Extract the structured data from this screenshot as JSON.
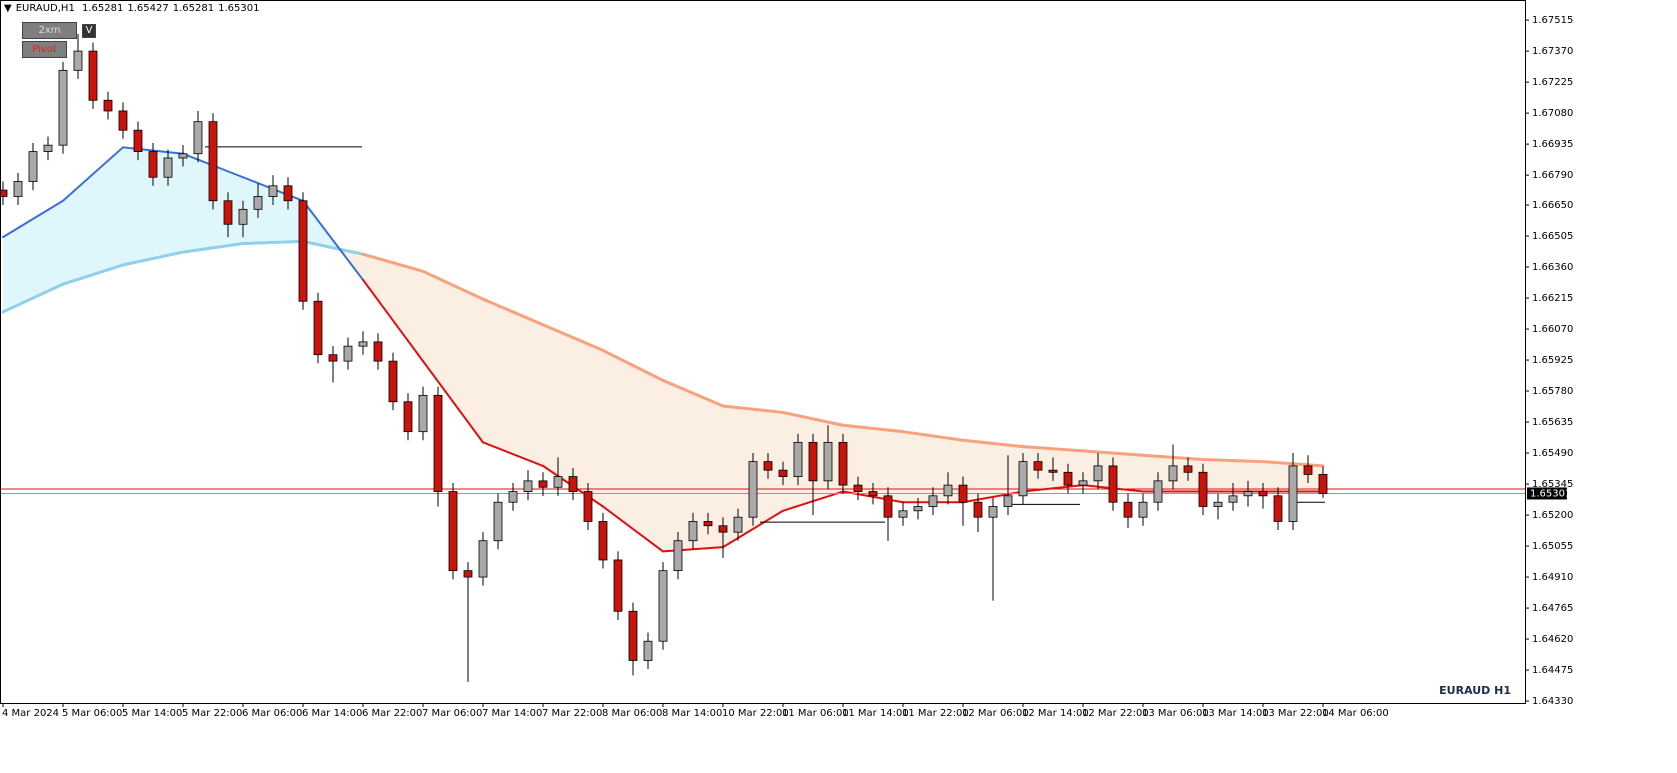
{
  "chart_data": {
    "type": "candlestick",
    "title": "EURAUD,H1",
    "header_values": [
      1.65281,
      1.65427,
      1.65281,
      1.65301
    ],
    "watermark": "EURAUD H1",
    "buttons": [
      "2xm",
      "Pivot",
      "V"
    ],
    "categories": [
      "4 Mar 2024",
      null,
      null,
      null,
      "5 Mar 06:00",
      null,
      null,
      null,
      "5 Mar 14:00",
      null,
      null,
      null,
      "5 Mar 22:00",
      null,
      null,
      null,
      "6 Mar 06:00",
      null,
      null,
      null,
      "6 Mar 14:00",
      null,
      null,
      null,
      "6 Mar 22:00",
      null,
      null,
      null,
      "7 Mar 06:00",
      null,
      null,
      null,
      "7 Mar 14:00",
      null,
      null,
      null,
      "7 Mar 22:00",
      null,
      null,
      null,
      "8 Mar 06:00",
      null,
      null,
      null,
      "8 Mar 14:00",
      null,
      null,
      null,
      "10 Mar 22:00",
      null,
      null,
      null,
      "11 Mar 06:00",
      null,
      null,
      null,
      "11 Mar 14:00",
      null,
      null,
      null,
      "11 Mar 22:00",
      null,
      null,
      null,
      "12 Mar 06:00",
      null,
      null,
      null,
      "12 Mar 14:00",
      null,
      null,
      null,
      "12 Mar 22:00",
      null,
      null,
      null,
      "13 Mar 06:00",
      null,
      null,
      null,
      "13 Mar 14:00",
      null,
      null,
      null,
      "13 Mar 22:00",
      null,
      null,
      null,
      "14 Mar 06:00"
    ],
    "open": [
      1.6672,
      1.6669,
      1.6676,
      1.669,
      1.6693,
      1.6728,
      1.6737,
      1.6714,
      1.6709,
      1.67,
      1.669,
      1.6678,
      1.6687,
      1.6689,
      1.6704,
      1.6667,
      1.6656,
      1.6663,
      1.6669,
      1.6674,
      1.6667,
      1.662,
      1.6595,
      1.6592,
      1.6599,
      1.6601,
      1.6592,
      1.6573,
      1.6559,
      1.6576,
      1.6531,
      1.6494,
      1.6491,
      1.6508,
      1.6526,
      1.6531,
      1.6536,
      1.6533,
      1.6538,
      1.6531,
      1.6517,
      1.6499,
      1.6475,
      1.6452,
      1.6461,
      1.6494,
      1.6508,
      1.6517,
      1.6515,
      1.6512,
      1.6519,
      1.6545,
      1.6541,
      1.6538,
      1.6554,
      1.6536,
      1.6554,
      1.6534,
      1.6531,
      1.6529,
      1.6519,
      1.6522,
      1.6524,
      1.6529,
      1.6534,
      1.6526,
      1.6519,
      1.6524,
      1.6529,
      1.6545,
      1.6541,
      1.654,
      1.6534,
      1.6536,
      1.6543,
      1.6526,
      1.6519,
      1.6526,
      1.6536,
      1.6543,
      1.654,
      1.6524,
      1.6526,
      1.6529,
      1.6531,
      1.6529,
      1.6517,
      1.6543,
      1.6539
    ],
    "high": [
      1.6676,
      1.668,
      1.6694,
      1.6697,
      1.6732,
      1.6745,
      1.6741,
      1.6718,
      1.6713,
      1.6704,
      1.6694,
      1.6691,
      1.6693,
      1.6709,
      1.6708,
      1.6671,
      1.6667,
      1.6675,
      1.6679,
      1.6678,
      1.6671,
      1.6624,
      1.6599,
      1.6603,
      1.6606,
      1.6605,
      1.6596,
      1.6577,
      1.658,
      1.658,
      1.6535,
      1.6498,
      1.6512,
      1.653,
      1.6535,
      1.6541,
      1.654,
      1.6547,
      1.6542,
      1.6535,
      1.6521,
      1.6503,
      1.6479,
      1.6465,
      1.6498,
      1.6512,
      1.6521,
      1.6521,
      1.6519,
      1.6523,
      1.6549,
      1.6549,
      1.6545,
      1.6558,
      1.6558,
      1.6562,
      1.6558,
      1.6538,
      1.6535,
      1.6533,
      1.6526,
      1.6528,
      1.6533,
      1.654,
      1.6538,
      1.653,
      1.6528,
      1.6548,
      1.6549,
      1.6549,
      1.6547,
      1.6544,
      1.654,
      1.6549,
      1.6547,
      1.653,
      1.653,
      1.654,
      1.6553,
      1.6547,
      1.6544,
      1.653,
      1.6535,
      1.6536,
      1.6535,
      1.6533,
      1.6549,
      1.6548,
      1.65427
    ],
    "low": [
      1.6665,
      1.6665,
      1.6672,
      1.6686,
      1.6689,
      1.6724,
      1.671,
      1.6705,
      1.6696,
      1.6686,
      1.6674,
      1.6674,
      1.6683,
      1.6685,
      1.6663,
      1.665,
      1.665,
      1.6659,
      1.6665,
      1.6663,
      1.6616,
      1.6591,
      1.6582,
      1.6588,
      1.6595,
      1.6588,
      1.6569,
      1.6555,
      1.6555,
      1.6524,
      1.649,
      1.6442,
      1.6487,
      1.6504,
      1.6522,
      1.6527,
      1.6529,
      1.6529,
      1.6527,
      1.6513,
      1.6495,
      1.6471,
      1.6445,
      1.6448,
      1.6457,
      1.649,
      1.6504,
      1.6511,
      1.65,
      1.6508,
      1.6515,
      1.6537,
      1.6534,
      1.6534,
      1.652,
      1.6532,
      1.653,
      1.6527,
      1.6525,
      1.6508,
      1.6515,
      1.6518,
      1.652,
      1.6525,
      1.6515,
      1.6512,
      1.648,
      1.652,
      1.6525,
      1.6537,
      1.6536,
      1.653,
      1.653,
      1.6532,
      1.6522,
      1.6514,
      1.6515,
      1.6522,
      1.6532,
      1.6536,
      1.652,
      1.6518,
      1.6522,
      1.6524,
      1.6523,
      1.6513,
      1.6513,
      1.6535,
      1.65281
    ],
    "close": [
      1.6669,
      1.6676,
      1.669,
      1.6693,
      1.6728,
      1.6737,
      1.6714,
      1.6709,
      1.67,
      1.669,
      1.6678,
      1.6687,
      1.6689,
      1.6704,
      1.6667,
      1.6656,
      1.6663,
      1.6669,
      1.6674,
      1.6667,
      1.662,
      1.6595,
      1.6592,
      1.6599,
      1.6601,
      1.6592,
      1.6573,
      1.6559,
      1.6576,
      1.6531,
      1.6494,
      1.6491,
      1.6508,
      1.6526,
      1.6531,
      1.6536,
      1.6533,
      1.6538,
      1.6531,
      1.6517,
      1.6499,
      1.6475,
      1.6452,
      1.6461,
      1.6494,
      1.6508,
      1.6517,
      1.6515,
      1.6512,
      1.6519,
      1.6545,
      1.6541,
      1.6538,
      1.6554,
      1.6536,
      1.6554,
      1.6534,
      1.6531,
      1.6529,
      1.6519,
      1.6522,
      1.6524,
      1.6529,
      1.6534,
      1.6526,
      1.6519,
      1.6524,
      1.6529,
      1.6545,
      1.6541,
      1.654,
      1.6534,
      1.6536,
      1.6543,
      1.6526,
      1.6519,
      1.6526,
      1.6536,
      1.6543,
      1.654,
      1.6524,
      1.6526,
      1.6529,
      1.6531,
      1.6529,
      1.6517,
      1.6543,
      1.6539,
      1.65301
    ],
    "up_color": "#a9a9a9",
    "down_color": "#c8140c",
    "fast_ma": [
      1.665,
      1.6667,
      1.6692,
      1.6689,
      1.6678,
      1.6667,
      1.663,
      1.6592,
      1.6554,
      1.6543,
      1.6524,
      1.6503,
      1.6505,
      1.6522,
      1.6531,
      1.6526,
      1.6526,
      1.6531,
      1.6534,
      1.6531,
      1.6531,
      1.6531,
      1.6531
    ],
    "slow_ma": [
      1.6615,
      1.6628,
      1.6637,
      1.6643,
      1.6647,
      1.6648,
      1.6642,
      1.6634,
      1.6621,
      1.6609,
      1.6597,
      1.6583,
      1.6571,
      1.6568,
      1.6562,
      1.6559,
      1.6555,
      1.6552,
      1.655,
      1.6548,
      1.6546,
      1.6545,
      1.6543
    ],
    "levels": [
      1.66922,
      1.65167,
      1.6525,
      1.6526
    ],
    "bid": 1.65301,
    "ask": 1.65322,
    "ylim": [
      1.64321,
      1.67609
    ],
    "yticks": [
      1.67515,
      {
        "value": 1.6737,
        "label": "1.67370"
      },
      1.67225,
      {
        "value": 1.6708,
        "label": "1.67080"
      },
      1.66935,
      {
        "value": 1.6679,
        "label": "1.66790"
      },
      {
        "value": 1.6665,
        "label": "1.66650"
      },
      1.66505,
      {
        "value": 1.6636,
        "label": "1.66360"
      },
      1.66215,
      {
        "value": 1.6607,
        "label": "1.66070"
      },
      1.65925,
      {
        "value": 1.6578,
        "label": "1.65780"
      },
      1.65635,
      {
        "value": 1.6549,
        "label": "1.65490"
      },
      1.65345,
      {
        "value": 1.652,
        "label": "1.65200"
      },
      1.65055,
      {
        "value": 1.6491,
        "label": "1.64910"
      },
      1.64765,
      {
        "value": 1.6462,
        "label": "1.64620"
      },
      1.64475,
      {
        "value": 1.6433,
        "label": "1.64330"
      }
    ],
    "grid": false
  }
}
